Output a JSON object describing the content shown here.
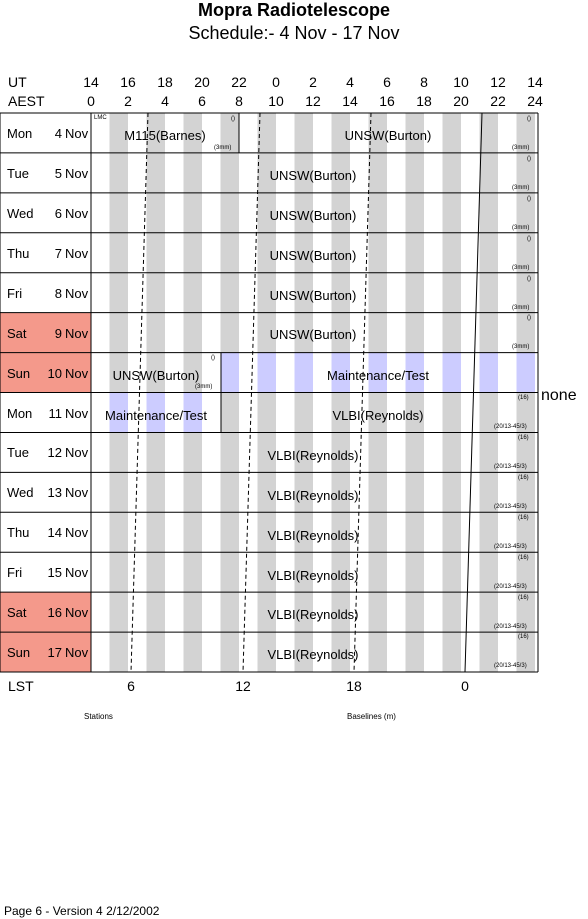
{
  "title": "Mopra Radiotelescope",
  "subtitle": "Schedule:- 4  Nov - 17 Nov",
  "header": {
    "ut_label": "UT",
    "aest_label": "AEST",
    "ut_ticks": [
      "14",
      "16",
      "18",
      "20",
      "22",
      "0",
      "2",
      "4",
      "6",
      "8",
      "10",
      "12",
      "14"
    ],
    "aest_ticks": [
      "0",
      "2",
      "4",
      "6",
      "8",
      "10",
      "12",
      "14",
      "16",
      "18",
      "20",
      "22",
      "24"
    ]
  },
  "days": [
    {
      "dow": "Mon",
      "date": "4",
      "month": "Nov",
      "weekend": false
    },
    {
      "dow": "Tue",
      "date": "5",
      "month": "Nov",
      "weekend": false
    },
    {
      "dow": "Wed",
      "date": "6",
      "month": "Nov",
      "weekend": false
    },
    {
      "dow": "Thu",
      "date": "7",
      "month": "Nov",
      "weekend": false
    },
    {
      "dow": "Fri",
      "date": "8",
      "month": "Nov",
      "weekend": false
    },
    {
      "dow": "Sat",
      "date": "9",
      "month": "Nov",
      "weekend": true
    },
    {
      "dow": "Sun",
      "date": "10",
      "month": "Nov",
      "weekend": true
    },
    {
      "dow": "Mon",
      "date": "11",
      "month": "Nov",
      "weekend": false
    },
    {
      "dow": "Tue",
      "date": "12",
      "month": "Nov",
      "weekend": false
    },
    {
      "dow": "Wed",
      "date": "13",
      "month": "Nov",
      "weekend": false
    },
    {
      "dow": "Thu",
      "date": "14",
      "month": "Nov",
      "weekend": false
    },
    {
      "dow": "Fri",
      "date": "15",
      "month": "Nov",
      "weekend": false
    },
    {
      "dow": "Sat",
      "date": "16",
      "month": "Nov",
      "weekend": true
    },
    {
      "dow": "Sun",
      "date": "17",
      "month": "Nov",
      "weekend": true
    }
  ],
  "bookings": {
    "r0a": {
      "label": "M115(Barnes)",
      "tl": "LMC",
      "tr": "()",
      "br": "(3mm)"
    },
    "r0b": {
      "label": "UNSW(Burton)",
      "tr": "()",
      "br": "(3mm)"
    },
    "r1": {
      "label": "UNSW(Burton)",
      "tr": "()",
      "br": "(3mm)"
    },
    "r2": {
      "label": "UNSW(Burton)",
      "tr": "()",
      "br": "(3mm)"
    },
    "r3": {
      "label": "UNSW(Burton)",
      "tr": "()",
      "br": "(3mm)"
    },
    "r4": {
      "label": "UNSW(Burton)",
      "tr": "()",
      "br": "(3mm)"
    },
    "r5": {
      "label": "UNSW(Burton)",
      "tr": "()",
      "br": "(3mm)"
    },
    "r6a": {
      "label": "UNSW(Burton)",
      "tr": "()",
      "br": "(3mm)"
    },
    "r6b": {
      "label": "Maintenance/Test"
    },
    "r7a": {
      "label": "Maintenance/Test"
    },
    "r7b": {
      "label": "VLBI(Reynolds)",
      "tr": "(16)",
      "br": "(20/13-45/3)"
    },
    "r8": {
      "label": "VLBI(Reynolds)",
      "tr": "(16)",
      "br": "(20/13-45/3)"
    },
    "r9": {
      "label": "VLBI(Reynolds)",
      "tr": "(16)",
      "br": "(20/13-45/3)"
    },
    "r10": {
      "label": "VLBI(Reynolds)",
      "tr": "(16)",
      "br": "(20/13-45/3)"
    },
    "r11": {
      "label": "VLBI(Reynolds)",
      "tr": "(16)",
      "br": "(20/13-45/3)"
    },
    "r12": {
      "label": "VLBI(Reynolds)",
      "tr": "(16)",
      "br": "(20/13-45/3)"
    },
    "r13": {
      "label": "VLBI(Reynolds)",
      "tr": "(16)",
      "br": "(20/13-45/3)"
    }
  },
  "side_note": "none",
  "lst": {
    "label": "LST",
    "ticks": [
      "6",
      "12",
      "18",
      "0"
    ]
  },
  "footer_labels": {
    "stations": "Stations",
    "baselines": "Baselines (m)"
  },
  "page_footer": "Page 6 - Version 4  2/12/2002",
  "colors": {
    "weekend": "#f4998b",
    "shade_grey": "#d3d3d3",
    "shade_blue": "#ccccff"
  }
}
